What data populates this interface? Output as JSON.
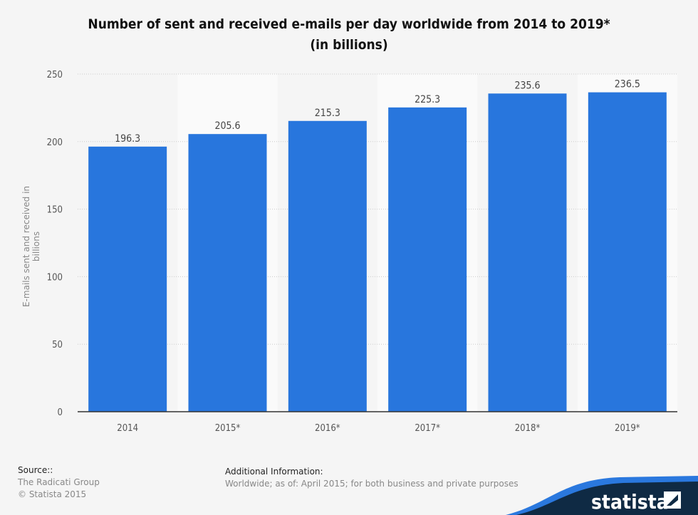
{
  "chart_data": {
    "type": "bar",
    "title": "Number of sent and received e-mails per day worldwide from 2014 to 2019*",
    "subtitle": "(in billions)",
    "categories": [
      "2014",
      "2015*",
      "2016*",
      "2017*",
      "2018*",
      "2019*"
    ],
    "values": [
      196.3,
      205.6,
      215.3,
      225.3,
      235.6,
      236.5
    ],
    "data_labels": [
      "196.3",
      "205.6",
      "215.3",
      "225.3",
      "235.6",
      "236.5"
    ],
    "xlabel": "",
    "ylabel": "E-mails sent and received in billions",
    "ylim": [
      0,
      250
    ],
    "yticks": [
      0,
      50,
      100,
      150,
      200,
      250
    ],
    "ytick_labels": [
      "0",
      "50",
      "100",
      "150",
      "200",
      "250"
    ],
    "grid": true,
    "bar_color": "#2876dd"
  },
  "footer": {
    "source_heading": "Source::",
    "source_lines": [
      "The Radicati Group",
      "© Statista 2015"
    ],
    "info_heading": "Additional Information:",
    "info_text": "Worldwide; as of: April 2015; for both business and private purposes",
    "logo_text": "statista"
  }
}
